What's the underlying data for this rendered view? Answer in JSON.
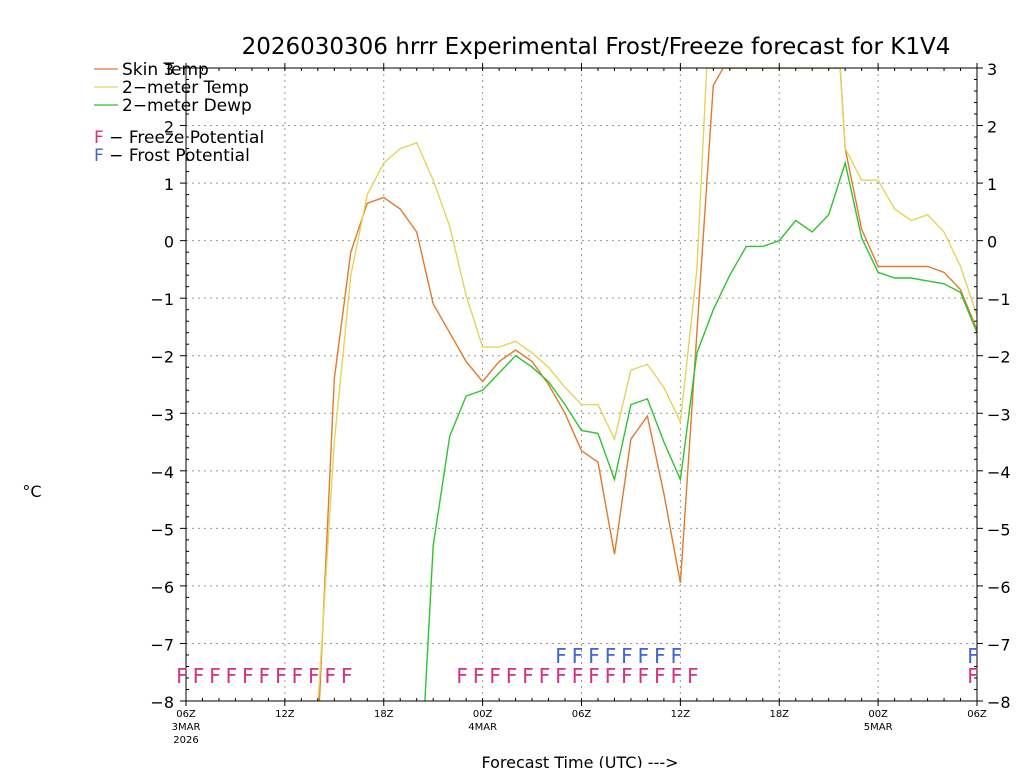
{
  "chart_data": {
    "type": "line",
    "title": "2026030306 hrrr Experimental Frost/Freeze forecast for K1V4",
    "xlabel": "Forecast Time (UTC) --->",
    "ylabel": "°C",
    "ylim": [
      -8,
      3
    ],
    "x_range_hours": [
      0,
      48
    ],
    "y_ticks": [
      3,
      2,
      1,
      0,
      -1,
      -2,
      -3,
      -4,
      -5,
      -6,
      -7,
      -8
    ],
    "y_tick_labels": [
      "3",
      "2",
      "1",
      "0",
      "−1",
      "−2",
      "−3",
      "−4",
      "−5",
      "−6",
      "−7",
      "−8"
    ],
    "x_ticks": [
      {
        "hour": 0,
        "label": "06Z",
        "sub": "3MAR",
        "sub2": "2026"
      },
      {
        "hour": 6,
        "label": "12Z",
        "sub": "",
        "sub2": ""
      },
      {
        "hour": 12,
        "label": "18Z",
        "sub": "",
        "sub2": ""
      },
      {
        "hour": 18,
        "label": "00Z",
        "sub": "4MAR",
        "sub2": ""
      },
      {
        "hour": 24,
        "label": "06Z",
        "sub": "",
        "sub2": ""
      },
      {
        "hour": 30,
        "label": "12Z",
        "sub": "",
        "sub2": ""
      },
      {
        "hour": 36,
        "label": "18Z",
        "sub": "",
        "sub2": ""
      },
      {
        "hour": 42,
        "label": "00Z",
        "sub": "5MAR",
        "sub2": ""
      },
      {
        "hour": 48,
        "label": "06Z",
        "sub": "",
        "sub2": ""
      }
    ],
    "series": [
      {
        "name": "Skin Temp",
        "color": "#e07a2e",
        "x": [
          8,
          9,
          10,
          11,
          12,
          13,
          14,
          15,
          16,
          17,
          18,
          19,
          20,
          21,
          22,
          23,
          24,
          25,
          26,
          27,
          28,
          29,
          30,
          31,
          32,
          32.6,
          39.7,
          40,
          41,
          42,
          43,
          44,
          45,
          46,
          47,
          48
        ],
        "values": [
          -8.6,
          -2.4,
          -0.2,
          0.65,
          0.75,
          0.55,
          0.15,
          -1.1,
          -1.6,
          -2.1,
          -2.45,
          -2.1,
          -1.9,
          -2.1,
          -2.5,
          -3.0,
          -3.65,
          -3.85,
          -5.45,
          -3.45,
          -3.05,
          -4.4,
          -5.95,
          -1.6,
          2.7,
          3.0,
          3.0,
          1.6,
          0.2,
          -0.45,
          -0.45,
          -0.45,
          -0.45,
          -0.55,
          -0.85,
          -1.55
        ]
      },
      {
        "name": "2-meter Temp",
        "color": "#e6d35a",
        "x": [
          8,
          9,
          10,
          11,
          12,
          13,
          14,
          15,
          16,
          17,
          18,
          19,
          20,
          21,
          22,
          23,
          24,
          25,
          26,
          27,
          28,
          29,
          30,
          31,
          31.6,
          39.7,
          40,
          41,
          42,
          43,
          44,
          45,
          46,
          47,
          48
        ],
        "values": [
          -8.1,
          -3.5,
          -0.6,
          0.8,
          1.35,
          1.6,
          1.7,
          1.05,
          0.25,
          -0.95,
          -1.85,
          -1.85,
          -1.75,
          -1.95,
          -2.2,
          -2.55,
          -2.85,
          -2.85,
          -3.45,
          -2.25,
          -2.15,
          -2.55,
          -3.15,
          -0.5,
          3.0,
          3.0,
          1.6,
          1.05,
          1.05,
          0.55,
          0.35,
          0.45,
          0.15,
          -0.45,
          -1.3
        ]
      },
      {
        "name": "2-meter Dewp",
        "color": "#2fc42f",
        "x": [
          14.5,
          15,
          16,
          17,
          18,
          19,
          20,
          21,
          22,
          23,
          24,
          25,
          26,
          27,
          28,
          29,
          30,
          31,
          32,
          33,
          34,
          35,
          36,
          37,
          38,
          39,
          40,
          41,
          42,
          43,
          44,
          45,
          46,
          47,
          48
        ],
        "values": [
          -8,
          -5.3,
          -3.4,
          -2.7,
          -2.6,
          -2.3,
          -2.0,
          -2.2,
          -2.45,
          -2.85,
          -3.3,
          -3.35,
          -4.15,
          -2.85,
          -2.75,
          -3.5,
          -4.15,
          -1.95,
          -1.2,
          -0.6,
          -0.1,
          -0.1,
          0.0,
          0.35,
          0.15,
          0.45,
          1.35,
          0.05,
          -0.55,
          -0.65,
          -0.65,
          -0.7,
          -0.75,
          -0.9,
          -1.6
        ]
      }
    ],
    "markers": [
      {
        "name": "freeze",
        "letter": "F",
        "color": "#d6317f",
        "y": -7.55,
        "hours": [
          0,
          1,
          2,
          3,
          4,
          5,
          6,
          7,
          8,
          9,
          10,
          17,
          18,
          19,
          20,
          21,
          22,
          23,
          24,
          25,
          26,
          27,
          28,
          29,
          30,
          31,
          48
        ]
      },
      {
        "name": "frost",
        "letter": "F",
        "color": "#3f66cc",
        "y": -7.2,
        "hours": [
          23,
          24,
          25,
          26,
          27,
          28,
          29,
          30,
          48
        ]
      }
    ],
    "legend": [
      {
        "label": "Skin Temp",
        "color": "#e07a2e"
      },
      {
        "label": "2−meter Temp",
        "color": "#e6d35a"
      },
      {
        "label": "2−meter Dewp",
        "color": "#2fc42f"
      }
    ],
    "marker_legend": [
      {
        "letter": "F",
        "color": "#d6317f",
        "label": " − Freeze Potential"
      },
      {
        "letter": "F",
        "color": "#3f66cc",
        "label": " − Frost Potential"
      }
    ]
  }
}
